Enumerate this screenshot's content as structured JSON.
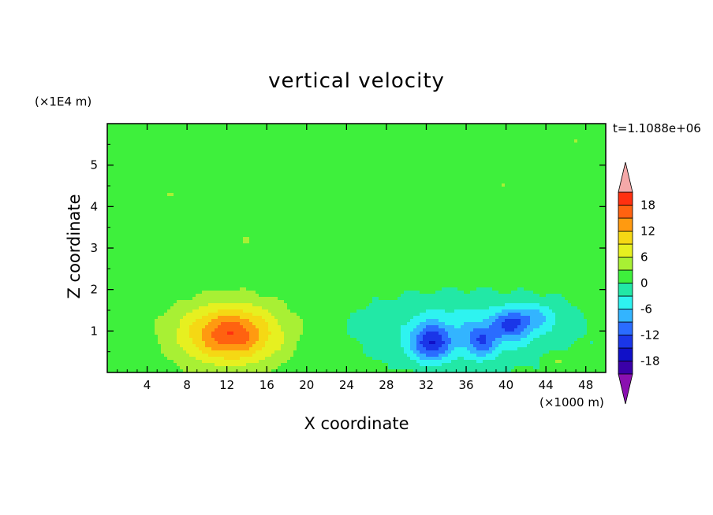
{
  "chart_data": {
    "type": "heatmap",
    "title": "vertical velocity",
    "xlabel": "X coordinate",
    "ylabel": "Z coordinate",
    "x_unit_label": "(×1000 m)",
    "y_unit_label": "(×1E4 m)",
    "time_label": "t=1.1088e+06",
    "xlim": [
      0,
      50
    ],
    "ylim": [
      0,
      6
    ],
    "xticks": [
      4,
      8,
      12,
      16,
      20,
      24,
      28,
      32,
      36,
      40,
      44,
      48
    ],
    "yticks": [
      1,
      2,
      3,
      4,
      5
    ],
    "colorbar": {
      "levels": [
        -21,
        -18,
        -15,
        -12,
        -9,
        -6,
        -3,
        0,
        3,
        6,
        9,
        12,
        15,
        18,
        21
      ],
      "tick_labels": [
        "18",
        "12",
        "6",
        "0",
        "-6",
        "-12",
        "-18"
      ],
      "tick_values": [
        18,
        12,
        6,
        0,
        -6,
        -12,
        -18
      ],
      "colors": [
        "#6a0ea0",
        "#3a00a8",
        "#1010c8",
        "#1a36e8",
        "#2a6cff",
        "#33b4ff",
        "#2ef3f0",
        "#22e8a6",
        "#3ef03c",
        "#a8f034",
        "#e6f020",
        "#f5d814",
        "#ff9a10",
        "#ff6210",
        "#ff3010",
        "#e81020"
      ],
      "extension_colors": {
        "min": "#8a10b0",
        "max": "#f4a8a8"
      }
    },
    "features": [
      {
        "x": 12.3,
        "z": 0.92,
        "value": 14,
        "sx": 5.2,
        "sz": 0.75
      },
      {
        "x": 12.5,
        "z": 0.95,
        "value": 3,
        "sx": 2.2,
        "sz": 0.4
      },
      {
        "x": 32.5,
        "z": 0.7,
        "value": -12,
        "sx": 1.9,
        "sz": 0.45
      },
      {
        "x": 37.5,
        "z": 0.75,
        "value": -8,
        "sx": 1.6,
        "sz": 0.4
      },
      {
        "x": 40.5,
        "z": 1.15,
        "value": -9,
        "sx": 1.8,
        "sz": 0.35
      },
      {
        "x": 43.0,
        "z": 1.35,
        "value": -5,
        "sx": 2.4,
        "sz": 0.35
      },
      {
        "x": 36.0,
        "z": 1.0,
        "value": -6,
        "sx": 9.5,
        "sz": 0.8
      },
      {
        "x": 45.3,
        "z": 0.3,
        "value": 3,
        "sx": 1.3,
        "sz": 0.2
      },
      {
        "x": 28.0,
        "z": 5.45,
        "value": 1.5,
        "sx": 6.0,
        "sz": 0.3
      },
      {
        "x": 22.0,
        "z": 4.75,
        "value": 1.5,
        "sx": 8.0,
        "sz": 0.35
      },
      {
        "x": 40.0,
        "z": 4.55,
        "value": 1.5,
        "sx": 7.0,
        "sz": 0.35
      },
      {
        "x": 15.0,
        "z": 3.2,
        "value": 1.5,
        "sx": 9.0,
        "sz": 0.4
      },
      {
        "x": 42.0,
        "z": 3.0,
        "value": 1.5,
        "sx": 8.0,
        "sz": 0.45
      },
      {
        "x": 47.0,
        "z": 5.5,
        "value": 1.5,
        "sx": 2.5,
        "sz": 0.4
      },
      {
        "x": 6.0,
        "z": 4.3,
        "value": 1.5,
        "sx": 4.0,
        "sz": 0.2
      }
    ]
  }
}
